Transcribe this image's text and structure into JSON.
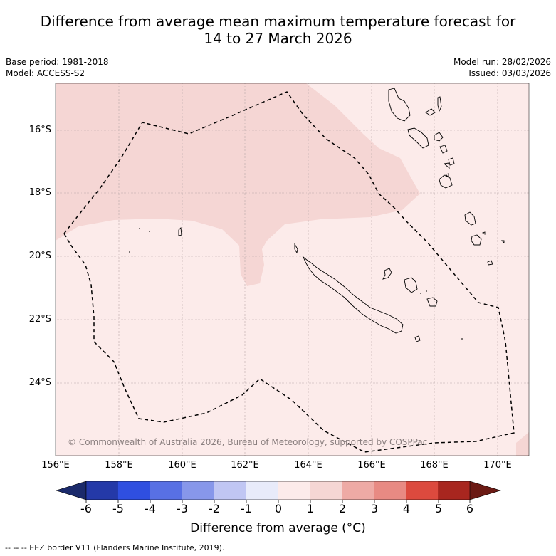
{
  "title": {
    "line1": "Difference from average mean maximum temperature forecast for",
    "line2": "14 to 27 March 2026"
  },
  "metadata": {
    "base_period": "Base period: 1981-2018",
    "model": "Model: ACCESS-S2",
    "model_run": "Model run: 28/02/2026",
    "issued": "Issued: 03/03/2026"
  },
  "map": {
    "latitude_labels": [
      "16°S",
      "18°S",
      "20°S",
      "22°S",
      "24°S"
    ],
    "longitude_labels": [
      "156°E",
      "158°E",
      "160°E",
      "162°E",
      "164°E",
      "166°E",
      "168°E",
      "170°E"
    ],
    "copyright": "© Commonwealth of Australia 2026, Bureau of Meteorology, supported by COSPPac",
    "region_colors": {
      "anomaly_0_to_1": "#fcebea",
      "anomaly_1_to_2": "#f5d6d4"
    },
    "land_outline_color": "#000000",
    "eez_border_color": "#000000"
  },
  "legend": {
    "tick_labels": [
      "-6",
      "-5",
      "-4",
      "-3",
      "-2",
      "-1",
      "0",
      "1",
      "2",
      "3",
      "4",
      "5",
      "6"
    ],
    "title": "Difference from average (°C)",
    "below_min_color": "#1b2a6b",
    "above_max_color": "#6b1a14",
    "bins": [
      {
        "range": "-6 to -5",
        "color": "#2439a8"
      },
      {
        "range": "-5 to -4",
        "color": "#2f4fe0"
      },
      {
        "range": "-4 to -3",
        "color": "#5870e4"
      },
      {
        "range": "-3 to -2",
        "color": "#8797ea"
      },
      {
        "range": "-2 to -1",
        "color": "#c0c6f3"
      },
      {
        "range": "-1 to 0",
        "color": "#e8ebfa"
      },
      {
        "range": "0 to 1",
        "color": "#fcebea"
      },
      {
        "range": "1 to 2",
        "color": "#f5d6d4"
      },
      {
        "range": "2 to 3",
        "color": "#eeaaa5"
      },
      {
        "range": "3 to 4",
        "color": "#e88a83"
      },
      {
        "range": "4 to 5",
        "color": "#dc4a3e"
      },
      {
        "range": "5 to 6",
        "color": "#a8261f"
      }
    ]
  },
  "footnote": "--  --  -- EEZ border V11 (Flanders Marine Institute, 2019)."
}
